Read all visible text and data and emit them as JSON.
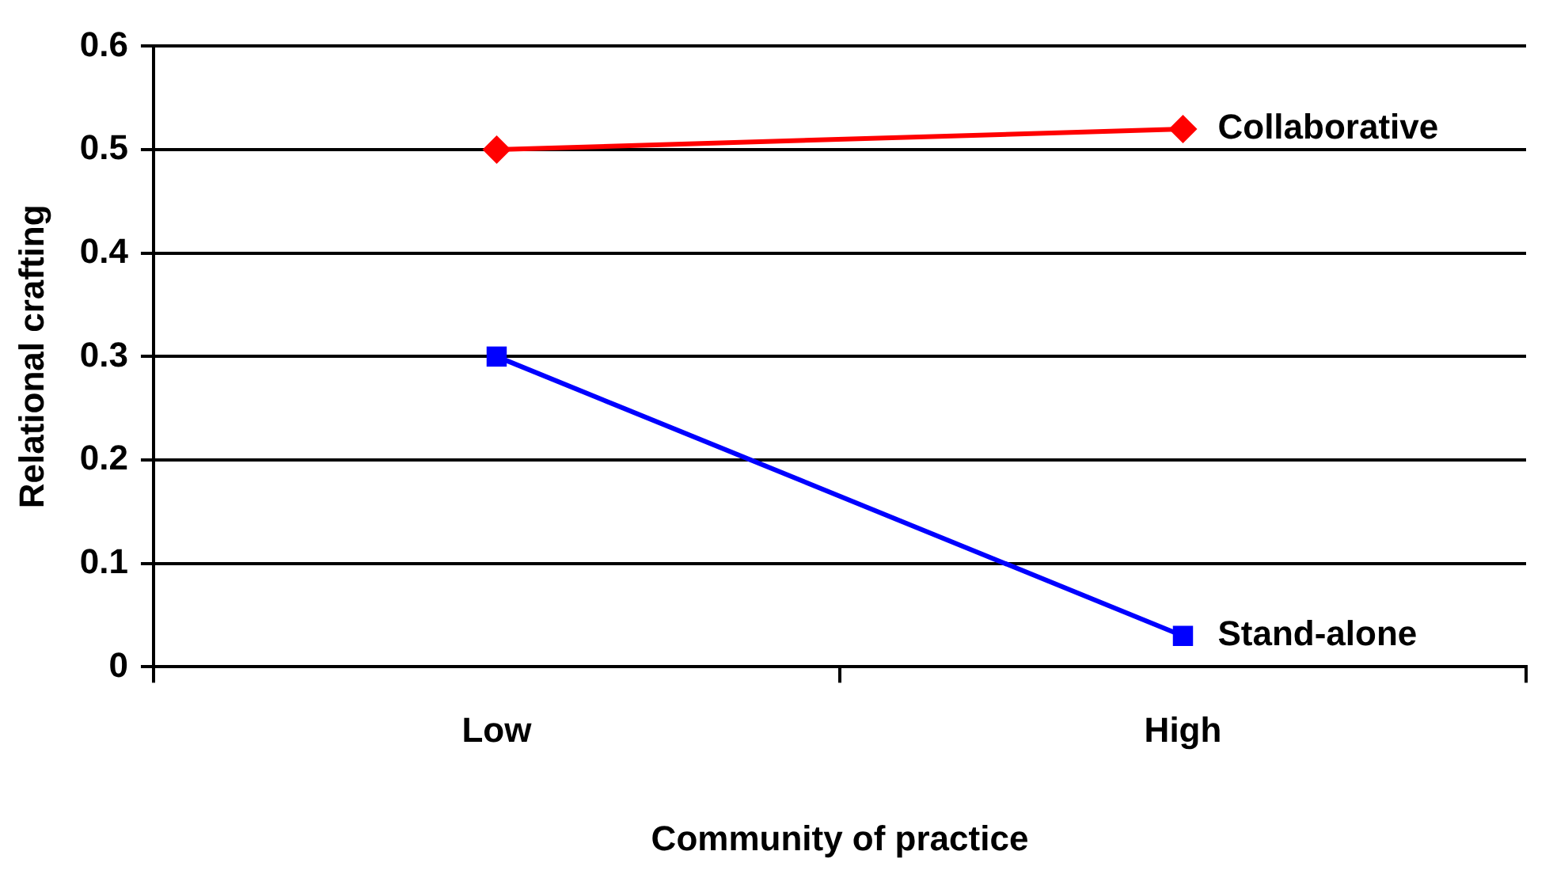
{
  "chart_data": {
    "type": "line",
    "xlabel": "Community of practice",
    "ylabel": "Relational crafting",
    "categories": [
      "Low",
      "High"
    ],
    "series": [
      {
        "name": "Collaborative",
        "color": "#ff0000",
        "marker": "diamond",
        "values": [
          0.5,
          0.52
        ]
      },
      {
        "name": "Stand-alone",
        "color": "#0000ff",
        "marker": "square",
        "values": [
          0.3,
          0.03
        ]
      }
    ],
    "ylim": [
      0,
      0.6
    ],
    "yticks": [
      0,
      0.1,
      0.2,
      0.3,
      0.4,
      0.5,
      0.6
    ],
    "grid": "y",
    "legend": false
  }
}
